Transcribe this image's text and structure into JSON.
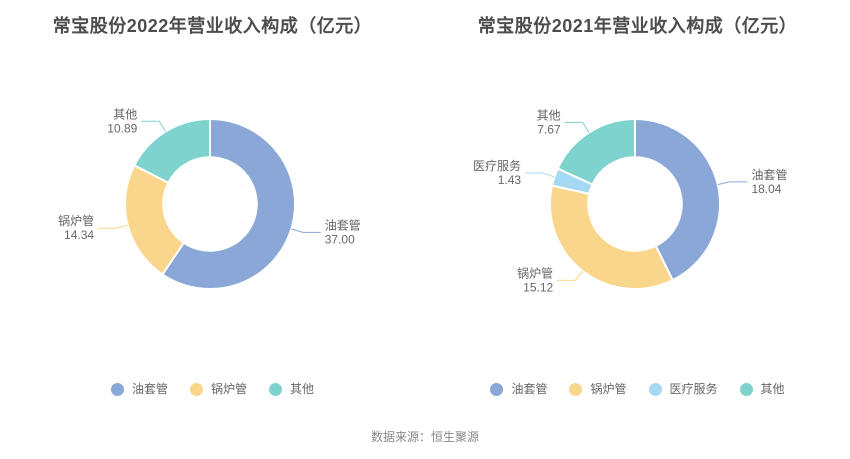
{
  "footer": {
    "text": "数据来源：恒生聚源"
  },
  "label_text_color": "#666666",
  "title_color": "#4d4d4d",
  "chart_data": [
    {
      "type": "pie",
      "subtype": "donut",
      "title": "常宝股份2022年营业收入构成（亿元）",
      "unit": "亿元",
      "start_angle": "top",
      "direction": "clockwise",
      "inner_radius_ratio": 0.55,
      "legend_position": "bottom",
      "series": [
        {
          "name": "油套管",
          "value": 37.0,
          "label": "37.00",
          "color": "#8BA7D8"
        },
        {
          "name": "锅炉管",
          "value": 14.34,
          "label": "14.34",
          "color": "#FAD68C"
        },
        {
          "name": "其他",
          "value": 10.89,
          "label": "10.89",
          "color": "#7ED3CE"
        }
      ],
      "legend": [
        "油套管",
        "锅炉管",
        "其他"
      ]
    },
    {
      "type": "pie",
      "subtype": "donut",
      "title": "常宝股份2021年营业收入构成（亿元）",
      "unit": "亿元",
      "start_angle": "top",
      "direction": "clockwise",
      "inner_radius_ratio": 0.55,
      "legend_position": "bottom",
      "series": [
        {
          "name": "油套管",
          "value": 18.04,
          "label": "18.04",
          "color": "#8BA7D8"
        },
        {
          "name": "锅炉管",
          "value": 15.12,
          "label": "15.12",
          "color": "#FAD68C"
        },
        {
          "name": "医疗服务",
          "value": 1.43,
          "label": "1.43",
          "color": "#A5D9F3"
        },
        {
          "name": "其他",
          "value": 7.67,
          "label": "7.67",
          "color": "#7ED3CE"
        }
      ],
      "legend": [
        "油套管",
        "锅炉管",
        "医疗服务",
        "其他"
      ]
    }
  ]
}
